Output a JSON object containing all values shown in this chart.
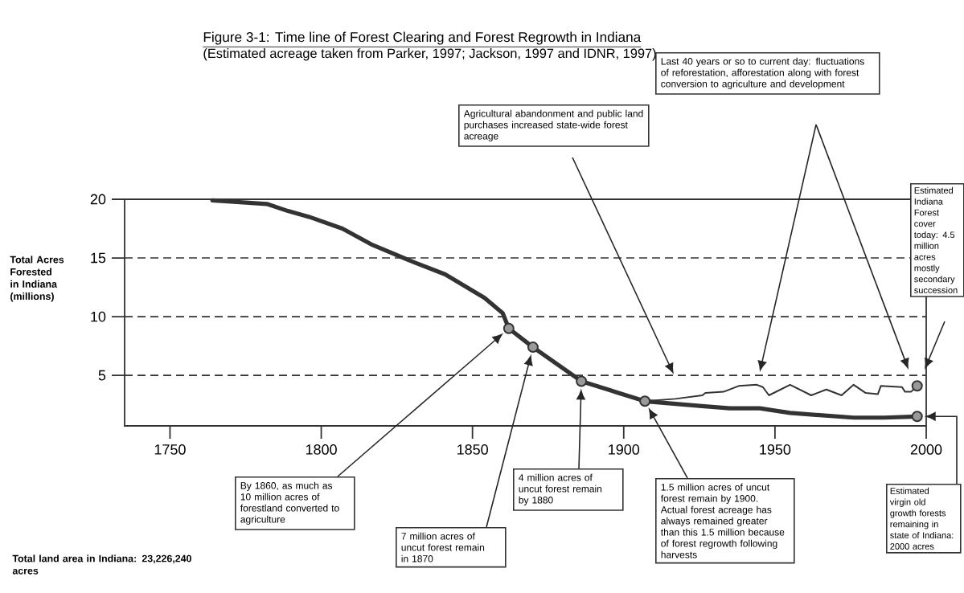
{
  "chart_data": {
    "type": "line",
    "title": "Figure 3-1: Time line of Forest Clearing and Forest Regrowth in Indiana",
    "subtitle": "(Estimated acreage taken from Parker, 1997; Jackson, 1997 and IDNR, 1997)",
    "ylabel": "Total Acres Forested in Indiana (millions)",
    "xlim": [
      1735,
      2000
    ],
    "xticks": [
      1750,
      1800,
      1850,
      1900,
      1950,
      2000
    ],
    "ylim": [
      0.7,
      20
    ],
    "yticks": [
      5,
      10,
      15,
      20
    ],
    "grid": "y",
    "series": [
      {
        "color": "#333333",
        "x": [
          1764,
          1782,
          1789,
          1796,
          1807,
          1817,
          1831,
          1841,
          1854,
          1860,
          1862,
          1870,
          1886,
          1907,
          1925,
          1935,
          1945,
          1955,
          1976,
          1986,
          1997
        ],
        "values": [
          19.9,
          19.6,
          19.0,
          18.5,
          17.5,
          16.1,
          14.6,
          13.6,
          11.6,
          10.3,
          9.0,
          7.4,
          4.5,
          2.8,
          2.4,
          2.2,
          2.2,
          1.8,
          1.4,
          1.4,
          1.5
        ]
      },
      {
        "color": "#333333",
        "x": [
          1907,
          1917,
          1926,
          1927,
          1933,
          1938,
          1944,
          1946,
          1948,
          1955,
          1962,
          1967,
          1972,
          1976,
          1980,
          1984,
          1985,
          1992,
          1993,
          1995,
          1997
        ],
        "values": [
          2.8,
          3.0,
          3.3,
          3.5,
          3.6,
          4.1,
          4.2,
          4.0,
          3.3,
          4.2,
          3.3,
          3.8,
          3.3,
          4.2,
          3.5,
          3.4,
          4.1,
          4.0,
          3.6,
          3.6,
          4.1
        ]
      },
      {
        "type": "scatter",
        "marker": "circle",
        "color": "#999999",
        "x": [
          1862,
          1870,
          1886,
          1907,
          1997,
          1997
        ],
        "values": [
          9.0,
          7.4,
          4.5,
          2.8,
          1.5,
          4.1
        ]
      }
    ],
    "annotations": [
      "Agricultural abandonment and public land purchases increased state-wide forest acreage",
      "Last 40 years or so to current day: fluctuations of reforestation, afforestation along with forest conversion to agriculture and development",
      "Estimated Indiana Forest cover today: 4.5 million acres mostly secondary succession",
      "By 1860, as much as 10 million acres of forestland converted to agriculture",
      "7 million acres of uncut forest remain in 1870",
      "4 million acres of uncut forest remain by 1880",
      "1.5 million acres of uncut forest remain by 1900. Actual forest acreage has always remained greater than this 1.5 million because of forest regrowth following harvests",
      "Estimated virgin old growth forests remaining in state of Indiana: 2000 acres",
      "**Total land area in Indiana: 23,226,240 acres**"
    ]
  }
}
